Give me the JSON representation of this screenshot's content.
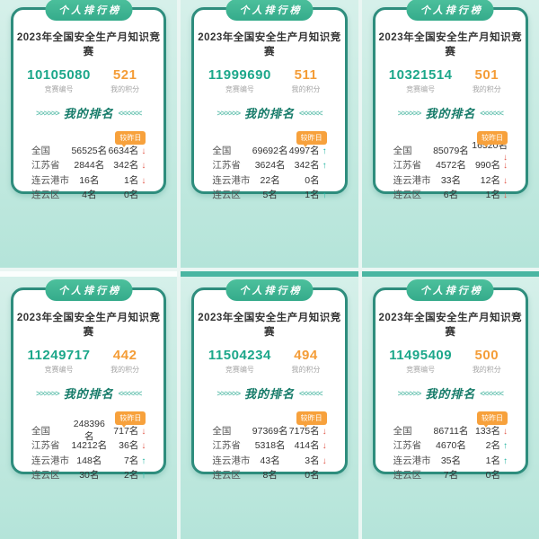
{
  "shared": {
    "badge": "个人排行榜",
    "title": "2023年全国安全生产月知识竞赛",
    "id_label": "竞赛编号",
    "score_label": "我的积分",
    "rank_title": "我的排名",
    "chevrons_left": ">>>>>>",
    "chevrons_right": "<<<<<<",
    "compare_badge": "较昨日",
    "rank_regions": [
      "全国",
      "江苏省",
      "连云港市",
      "连云区"
    ]
  },
  "colors": {
    "card_border": "#2e8d7d",
    "badge_green": "#3cb392",
    "id_teal": "#1ca78a",
    "score_orange": "#f49d38",
    "compare_orange": "#f7a13c",
    "down_red": "#e2574a",
    "up_teal": "#1fb3a0",
    "background_mint": "#c5eae1"
  },
  "cards": [
    {
      "id": "10105080",
      "score": "521",
      "rows": [
        {
          "region": "全国",
          "rank": "56525名",
          "change": "6634名",
          "direction": "down"
        },
        {
          "region": "江苏省",
          "rank": "2844名",
          "change": "342名",
          "direction": "down"
        },
        {
          "region": "连云港市",
          "rank": "16名",
          "change": "1名",
          "direction": "down"
        },
        {
          "region": "连云区",
          "rank": "4名",
          "change": "0名",
          "direction": "none"
        }
      ]
    },
    {
      "id": "11999690",
      "score": "511",
      "rows": [
        {
          "region": "全国",
          "rank": "69692名",
          "change": "4997名",
          "direction": "up"
        },
        {
          "region": "江苏省",
          "rank": "3624名",
          "change": "342名",
          "direction": "up"
        },
        {
          "region": "连云港市",
          "rank": "22名",
          "change": "0名",
          "direction": "none"
        },
        {
          "region": "连云区",
          "rank": "5名",
          "change": "1名",
          "direction": "up"
        }
      ]
    },
    {
      "id": "10321514",
      "score": "501",
      "rows": [
        {
          "region": "全国",
          "rank": "85079名",
          "change": "16520名",
          "direction": "down"
        },
        {
          "region": "江苏省",
          "rank": "4572名",
          "change": "990名",
          "direction": "down"
        },
        {
          "region": "连云港市",
          "rank": "33名",
          "change": "12名",
          "direction": "down"
        },
        {
          "region": "连云区",
          "rank": "6名",
          "change": "1名",
          "direction": "down"
        }
      ]
    },
    {
      "id": "11249717",
      "score": "442",
      "rows": [
        {
          "region": "全国",
          "rank": "248396名",
          "change": "717名",
          "direction": "down"
        },
        {
          "region": "江苏省",
          "rank": "14212名",
          "change": "36名",
          "direction": "down"
        },
        {
          "region": "连云港市",
          "rank": "148名",
          "change": "7名",
          "direction": "up"
        },
        {
          "region": "连云区",
          "rank": "30名",
          "change": "2名",
          "direction": "up"
        }
      ]
    },
    {
      "id": "11504234",
      "score": "494",
      "rows": [
        {
          "region": "全国",
          "rank": "97369名",
          "change": "7175名",
          "direction": "down"
        },
        {
          "region": "江苏省",
          "rank": "5318名",
          "change": "414名",
          "direction": "down"
        },
        {
          "region": "连云港市",
          "rank": "43名",
          "change": "3名",
          "direction": "down"
        },
        {
          "region": "连云区",
          "rank": "8名",
          "change": "0名",
          "direction": "none"
        }
      ]
    },
    {
      "id": "11495409",
      "score": "500",
      "rows": [
        {
          "region": "全国",
          "rank": "86711名",
          "change": "133名",
          "direction": "down"
        },
        {
          "region": "江苏省",
          "rank": "4670名",
          "change": "2名",
          "direction": "up"
        },
        {
          "region": "连云港市",
          "rank": "35名",
          "change": "1名",
          "direction": "up"
        },
        {
          "region": "连云区",
          "rank": "7名",
          "change": "0名",
          "direction": "none"
        }
      ]
    }
  ]
}
